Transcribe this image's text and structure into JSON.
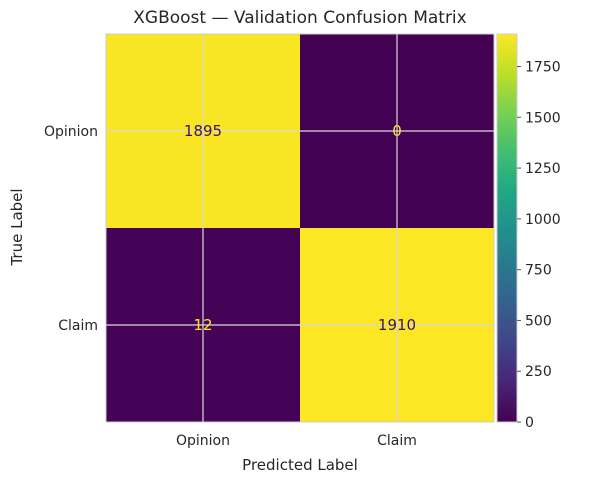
{
  "chart_data": {
    "type": "heatmap",
    "title": "XGBoost — Validation Confusion Matrix",
    "xlabel": "Predicted Label",
    "ylabel": "True Label",
    "x_categories": [
      "Opinion",
      "Claim"
    ],
    "y_categories": [
      "Opinion",
      "Claim"
    ],
    "values": [
      [
        1895,
        0
      ],
      [
        12,
        1910
      ]
    ],
    "colormap": "viridis",
    "color_range": [
      0,
      1910
    ],
    "colorbar_ticks": [
      0,
      250,
      500,
      750,
      1000,
      1250,
      1500,
      1750
    ],
    "grid": true,
    "colors": {
      "low": "#440154",
      "high": "#fde725",
      "text_on_light": "#3b1260",
      "text_on_dark": "#fde725",
      "grid": "#d9d9d9"
    }
  }
}
